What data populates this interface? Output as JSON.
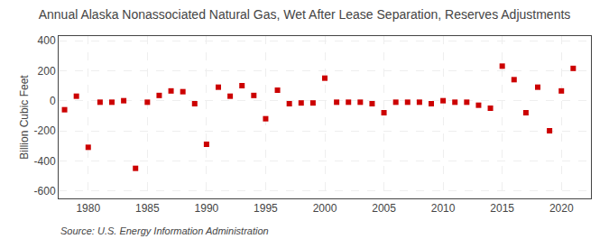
{
  "chart_data": {
    "type": "scatter",
    "title": "Annual Alaska Nonassociated Natural Gas, Wet After Lease Separation, Reserves Adjustments",
    "ylabel": "Billion Cubic Feet",
    "annotations": [
      "Source: U.S. Energy Information Administration"
    ],
    "x": [
      1978,
      1979,
      1980,
      1981,
      1982,
      1983,
      1984,
      1985,
      1986,
      1987,
      1988,
      1989,
      1990,
      1991,
      1992,
      1993,
      1994,
      1995,
      1996,
      1997,
      1998,
      1999,
      2000,
      2001,
      2002,
      2003,
      2004,
      2005,
      2006,
      2007,
      2008,
      2009,
      2010,
      2011,
      2012,
      2013,
      2014,
      2015,
      2016,
      2017,
      2018,
      2019,
      2020,
      2021
    ],
    "values": [
      -60,
      30,
      -310,
      -10,
      -10,
      0,
      -450,
      -10,
      35,
      65,
      60,
      -20,
      -290,
      90,
      30,
      100,
      35,
      -120,
      70,
      -20,
      -15,
      -15,
      150,
      -10,
      -10,
      -10,
      -20,
      -80,
      -10,
      -10,
      -10,
      -20,
      0,
      -10,
      -10,
      -30,
      -50,
      230,
      140,
      -80,
      90,
      -200,
      65,
      215
    ],
    "color": "#cc0000",
    "marker": "square",
    "xlim": [
      1977.5,
      2022.5
    ],
    "ylim": [
      -650,
      430
    ],
    "xticks": [
      1980,
      1985,
      1990,
      1995,
      2000,
      2005,
      2010,
      2015,
      2020
    ],
    "yticks": [
      -600,
      -400,
      -200,
      0,
      200,
      400
    ],
    "grid": true
  }
}
